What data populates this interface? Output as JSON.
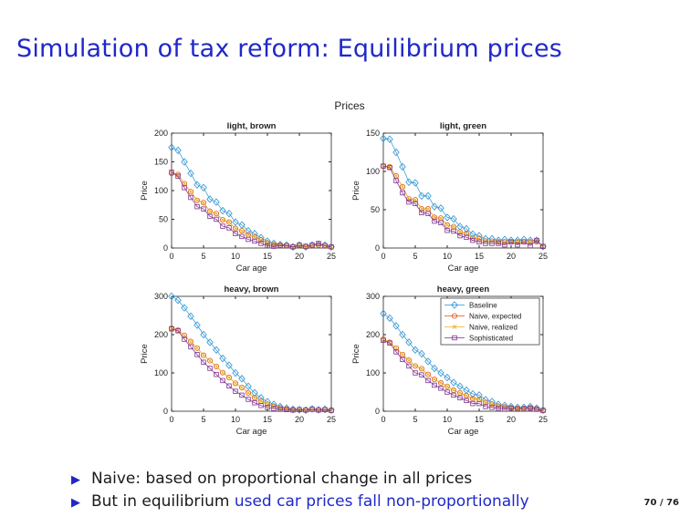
{
  "slide": {
    "title": "Simulation of tax reform: Equilibrium prices",
    "bullets": [
      {
        "text": "Naive: based on proportional change in all prices",
        "highlight": ""
      },
      {
        "text": "But in equilibrium ",
        "highlight": "used car prices fall non-proportionally"
      }
    ],
    "page": "70 / 76"
  },
  "colors": {
    "title": "#1f28c8",
    "baseline": "#2a93d5",
    "naive_expected": "#d95319",
    "naive_realized": "#edb120",
    "sophisticated": "#7e2f8e"
  },
  "legend": [
    "Baseline",
    "Naive, expected",
    "Naive, realized",
    "Sophisticated"
  ],
  "chart_data": {
    "type": "line",
    "suptitle": "Prices",
    "x": [
      0,
      1,
      2,
      3,
      4,
      5,
      6,
      7,
      8,
      9,
      10,
      11,
      12,
      13,
      14,
      15,
      16,
      17,
      18,
      19,
      20,
      21,
      22,
      23,
      24,
      25
    ],
    "xlim": [
      0,
      25
    ],
    "xticks": [
      0,
      5,
      10,
      15,
      20,
      25
    ],
    "panels": [
      {
        "title": "light, brown",
        "xlabel": "Car age",
        "ylabel": "Price",
        "ylim": [
          0,
          200
        ],
        "yticks": [
          0,
          50,
          100,
          150,
          200
        ],
        "series": [
          {
            "name": "Baseline",
            "values": [
              175,
              170,
              150,
              130,
              110,
              105,
              85,
              80,
              65,
              60,
              45,
              40,
              30,
              25,
              18,
              12,
              8,
              6,
              5,
              2,
              5,
              2,
              5,
              6,
              5,
              2
            ]
          },
          {
            "name": "Naive, expected",
            "values": [
              130,
              128,
              112,
              98,
              83,
              79,
              64,
              60,
              49,
              45,
              34,
              30,
              23,
              19,
              14,
              9,
              6,
              5,
              4,
              2,
              4,
              2,
              4,
              5,
              4,
              2
            ]
          },
          {
            "name": "Naive, realized",
            "values": [
              130,
              128,
              112,
              98,
              83,
              79,
              64,
              60,
              49,
              45,
              34,
              30,
              23,
              19,
              14,
              9,
              6,
              5,
              4,
              2,
              4,
              2,
              4,
              5,
              4,
              2
            ]
          },
          {
            "name": "Sophisticated",
            "values": [
              132,
              125,
              105,
              88,
              72,
              68,
              55,
              50,
              38,
              35,
              25,
              20,
              15,
              12,
              8,
              4,
              3,
              4,
              4,
              2,
              5,
              3,
              5,
              8,
              4,
              2
            ]
          }
        ]
      },
      {
        "title": "light, green",
        "xlabel": "Car age",
        "ylabel": "Price",
        "ylim": [
          0,
          150
        ],
        "yticks": [
          0,
          50,
          100,
          150
        ],
        "series": [
          {
            "name": "Baseline",
            "values": [
              143,
              142,
              125,
              106,
              86,
              85,
              68,
              68,
              54,
              52,
              40,
              38,
              28,
              25,
              18,
              16,
              12,
              12,
              10,
              11,
              10,
              10,
              11,
              10,
              10,
              2
            ]
          },
          {
            "name": "Naive, expected",
            "values": [
              107,
              106,
              94,
              80,
              64,
              63,
              51,
              51,
              40,
              39,
              30,
              28,
              21,
              19,
              13,
              12,
              9,
              9,
              8,
              8,
              8,
              8,
              8,
              8,
              8,
              2
            ]
          },
          {
            "name": "Naive, realized",
            "values": [
              107,
              106,
              94,
              80,
              64,
              63,
              51,
              51,
              40,
              39,
              30,
              28,
              21,
              19,
              13,
              12,
              9,
              9,
              8,
              8,
              8,
              8,
              8,
              8,
              8,
              2
            ]
          },
          {
            "name": "Sophisticated",
            "values": [
              107,
              105,
              88,
              72,
              60,
              58,
              46,
              45,
              35,
              33,
              23,
              22,
              16,
              14,
              10,
              8,
              6,
              6,
              6,
              4,
              8,
              4,
              8,
              3,
              10,
              2
            ]
          }
        ]
      },
      {
        "title": "heavy, brown",
        "xlabel": "Car age",
        "ylabel": "Price",
        "ylim": [
          0,
          300
        ],
        "yticks": [
          0,
          100,
          200,
          300
        ],
        "series": [
          {
            "name": "Baseline",
            "values": [
              300,
              290,
              270,
              248,
              225,
              200,
              180,
              160,
              138,
              120,
              100,
              85,
              65,
              48,
              35,
              25,
              18,
              12,
              8,
              5,
              4,
              3,
              6,
              4,
              5,
              3
            ]
          },
          {
            "name": "Naive, expected",
            "values": [
              217,
              212,
              198,
              182,
              165,
              146,
              132,
              117,
              101,
              88,
              73,
              62,
              48,
              35,
              26,
              18,
              13,
              9,
              6,
              4,
              4,
              3,
              5,
              3,
              4,
              2
            ]
          },
          {
            "name": "Naive, realized",
            "values": [
              217,
              212,
              198,
              182,
              165,
              146,
              132,
              117,
              101,
              88,
              73,
              62,
              48,
              35,
              26,
              18,
              13,
              9,
              6,
              4,
              4,
              3,
              5,
              3,
              4,
              2
            ]
          },
          {
            "name": "Sophisticated",
            "values": [
              215,
              210,
              188,
              168,
              148,
              128,
              112,
              96,
              80,
              66,
              52,
              42,
              31,
              22,
              15,
              10,
              7,
              5,
              4,
              3,
              4,
              3,
              5,
              3,
              4,
              2
            ]
          }
        ]
      },
      {
        "title": "heavy, green",
        "xlabel": "Car age",
        "ylabel": "Price",
        "ylim": [
          0,
          300
        ],
        "yticks": [
          0,
          100,
          200,
          300
        ],
        "legend": "top-right",
        "series": [
          {
            "name": "Baseline",
            "values": [
              255,
              243,
              223,
              200,
              180,
              160,
              150,
              130,
              112,
              100,
              88,
              75,
              65,
              55,
              45,
              42,
              30,
              25,
              18,
              15,
              12,
              10,
              10,
              12,
              8,
              3
            ]
          },
          {
            "name": "Naive, expected",
            "values": [
              188,
              180,
              165,
              148,
              133,
              118,
              111,
              96,
              83,
              74,
              65,
              55,
              48,
              41,
              33,
              31,
              22,
              18,
              13,
              11,
              9,
              7,
              7,
              9,
              6,
              2
            ]
          },
          {
            "name": "Naive, realized",
            "values": [
              188,
              180,
              165,
              148,
              133,
              118,
              111,
              96,
              83,
              74,
              65,
              55,
              48,
              41,
              33,
              31,
              22,
              18,
              13,
              11,
              9,
              7,
              7,
              9,
              6,
              2
            ]
          },
          {
            "name": "Sophisticated",
            "values": [
              185,
              178,
              155,
              135,
              118,
              100,
              95,
              80,
              68,
              60,
              50,
              42,
              35,
              28,
              20,
              20,
              12,
              10,
              8,
              6,
              8,
              5,
              6,
              8,
              5,
              2
            ]
          }
        ]
      }
    ]
  }
}
